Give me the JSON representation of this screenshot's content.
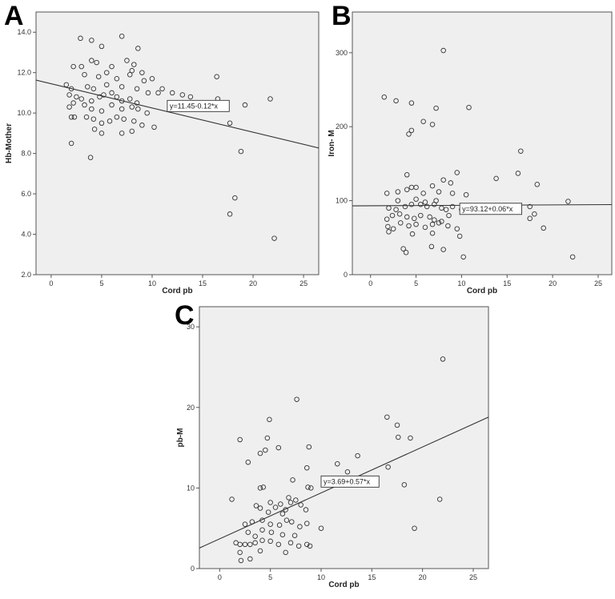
{
  "chart_data": [
    {
      "id": "A",
      "type": "scatter",
      "panel_label": "A",
      "xlabel": "Cord pb",
      "ylabel": "Hb-Mother",
      "xlim": [
        -1.5,
        26.5
      ],
      "ylim": [
        2.0,
        15.0
      ],
      "xticks": [
        0,
        5,
        10,
        15,
        20,
        25
      ],
      "yticks": [
        2.0,
        4.0,
        6.0,
        8.0,
        10.0,
        12.0,
        14.0
      ],
      "ytick_labels": [
        "2.0",
        "4.0",
        "6.0",
        "8.0",
        "10.0",
        "12.0",
        "14.0"
      ],
      "fit": {
        "intercept": 11.45,
        "slope": -0.12,
        "label": "y=11.45-0.12*x",
        "label_at": [
          11.5,
          10.35
        ]
      },
      "points": [
        [
          2.9,
          13.7
        ],
        [
          4.0,
          13.6
        ],
        [
          7.0,
          13.8
        ],
        [
          5.0,
          13.3
        ],
        [
          8.6,
          13.2
        ],
        [
          3.0,
          12.3
        ],
        [
          2.2,
          12.3
        ],
        [
          4.0,
          12.6
        ],
        [
          4.5,
          12.5
        ],
        [
          7.5,
          12.6
        ],
        [
          8.2,
          12.4
        ],
        [
          8.0,
          12.1
        ],
        [
          9.0,
          12.0
        ],
        [
          5.5,
          12.0
        ],
        [
          6.0,
          12.3
        ],
        [
          3.3,
          11.9
        ],
        [
          4.7,
          11.8
        ],
        [
          6.5,
          11.7
        ],
        [
          7.8,
          11.9
        ],
        [
          9.2,
          11.6
        ],
        [
          10.0,
          11.7
        ],
        [
          16.4,
          11.8
        ],
        [
          1.5,
          11.4
        ],
        [
          2.0,
          11.2
        ],
        [
          3.6,
          11.3
        ],
        [
          4.2,
          11.2
        ],
        [
          5.5,
          11.4
        ],
        [
          7.0,
          11.3
        ],
        [
          8.5,
          11.2
        ],
        [
          9.6,
          11.0
        ],
        [
          12.0,
          11.0
        ],
        [
          1.8,
          10.9
        ],
        [
          2.5,
          10.8
        ],
        [
          3.0,
          10.7
        ],
        [
          4.0,
          10.6
        ],
        [
          4.8,
          10.8
        ],
        [
          5.2,
          10.9
        ],
        [
          6.0,
          11.0
        ],
        [
          6.5,
          10.8
        ],
        [
          7.0,
          10.6
        ],
        [
          7.8,
          10.7
        ],
        [
          8.5,
          10.5
        ],
        [
          10.6,
          11.0
        ],
        [
          13.0,
          10.9
        ],
        [
          13.8,
          10.8
        ],
        [
          16.5,
          10.7
        ],
        [
          21.7,
          10.7
        ],
        [
          1.8,
          10.3
        ],
        [
          2.2,
          10.5
        ],
        [
          3.3,
          10.4
        ],
        [
          4.0,
          10.2
        ],
        [
          5.0,
          10.1
        ],
        [
          6.0,
          10.4
        ],
        [
          7.0,
          10.2
        ],
        [
          8.0,
          10.3
        ],
        [
          8.6,
          10.2
        ],
        [
          9.5,
          10.0
        ],
        [
          19.2,
          10.4
        ],
        [
          11.0,
          11.2
        ],
        [
          2.0,
          9.8
        ],
        [
          2.3,
          9.8
        ],
        [
          3.5,
          9.8
        ],
        [
          4.2,
          9.7
        ],
        [
          5.0,
          9.5
        ],
        [
          5.8,
          9.6
        ],
        [
          6.5,
          9.8
        ],
        [
          7.2,
          9.7
        ],
        [
          8.2,
          9.6
        ],
        [
          9.0,
          9.4
        ],
        [
          10.2,
          9.3
        ],
        [
          17.7,
          9.5
        ],
        [
          4.3,
          9.2
        ],
        [
          5.0,
          9.0
        ],
        [
          7.0,
          9.0
        ],
        [
          8.0,
          9.1
        ],
        [
          2.0,
          8.5
        ],
        [
          18.8,
          8.1
        ],
        [
          3.9,
          7.8
        ],
        [
          18.2,
          5.8
        ],
        [
          17.7,
          5.0
        ],
        [
          22.1,
          3.8
        ]
      ]
    },
    {
      "id": "B",
      "type": "scatter",
      "panel_label": "B",
      "xlabel": "Cord pb",
      "ylabel": "Iron- M",
      "xlim": [
        -2,
        26.5
      ],
      "ylim": [
        0,
        355
      ],
      "xticks": [
        0,
        5,
        10,
        15,
        20,
        25
      ],
      "yticks": [
        0,
        100,
        200,
        300
      ],
      "ytick_labels": [
        "0",
        "100",
        "200",
        "300"
      ],
      "fit": {
        "intercept": 93.12,
        "slope": 0.06,
        "label": "y=93.12+0.06*x",
        "label_at": [
          9.8,
          89
        ]
      },
      "points": [
        [
          8.0,
          303
        ],
        [
          1.5,
          240
        ],
        [
          2.8,
          235
        ],
        [
          4.5,
          232
        ],
        [
          7.2,
          225
        ],
        [
          10.8,
          226
        ],
        [
          5.8,
          207
        ],
        [
          6.8,
          203
        ],
        [
          4.5,
          195
        ],
        [
          4.2,
          190
        ],
        [
          16.5,
          167
        ],
        [
          4.0,
          135
        ],
        [
          9.5,
          138
        ],
        [
          16.2,
          137
        ],
        [
          13.8,
          130
        ],
        [
          5.0,
          118
        ],
        [
          4.0,
          115
        ],
        [
          4.5,
          118
        ],
        [
          6.8,
          120
        ],
        [
          8.0,
          128
        ],
        [
          8.8,
          124
        ],
        [
          10.5,
          108
        ],
        [
          18.3,
          122
        ],
        [
          1.8,
          110
        ],
        [
          3.0,
          112
        ],
        [
          5.8,
          110
        ],
        [
          7.5,
          112
        ],
        [
          9.0,
          110
        ],
        [
          2.0,
          90
        ],
        [
          2.8,
          88
        ],
        [
          3.8,
          92
        ],
        [
          4.5,
          95
        ],
        [
          5.5,
          95
        ],
        [
          6.2,
          92
        ],
        [
          7.0,
          95
        ],
        [
          7.8,
          90
        ],
        [
          8.3,
          88
        ],
        [
          9.0,
          92
        ],
        [
          10.0,
          88
        ],
        [
          17.5,
          92
        ],
        [
          21.7,
          99
        ],
        [
          3.0,
          100
        ],
        [
          5.0,
          102
        ],
        [
          6.0,
          98
        ],
        [
          7.2,
          100
        ],
        [
          1.8,
          75
        ],
        [
          2.4,
          80
        ],
        [
          3.2,
          82
        ],
        [
          4.0,
          78
        ],
        [
          4.8,
          76
        ],
        [
          5.5,
          80
        ],
        [
          6.5,
          78
        ],
        [
          7.0,
          74
        ],
        [
          7.8,
          72
        ],
        [
          8.6,
          80
        ],
        [
          17.5,
          76
        ],
        [
          18.0,
          82
        ],
        [
          1.9,
          65
        ],
        [
          2.5,
          62
        ],
        [
          3.3,
          70
        ],
        [
          4.2,
          66
        ],
        [
          5.0,
          68
        ],
        [
          6.0,
          64
        ],
        [
          6.8,
          68
        ],
        [
          7.5,
          70
        ],
        [
          8.5,
          66
        ],
        [
          9.5,
          62
        ],
        [
          19.0,
          63
        ],
        [
          2.0,
          58
        ],
        [
          4.6,
          55
        ],
        [
          6.8,
          56
        ],
        [
          9.8,
          52
        ],
        [
          3.6,
          35
        ],
        [
          3.9,
          30
        ],
        [
          6.7,
          38
        ],
        [
          8.0,
          34
        ],
        [
          10.2,
          24
        ],
        [
          22.2,
          24
        ]
      ]
    },
    {
      "id": "C",
      "type": "scatter",
      "panel_label": "C",
      "xlabel": "Cord pb",
      "ylabel": "pb-M",
      "xlim": [
        -2,
        26.5
      ],
      "ylim": [
        0,
        32.5
      ],
      "xticks": [
        0,
        5,
        10,
        15,
        20,
        25
      ],
      "yticks": [
        0,
        10,
        20,
        30
      ],
      "ytick_labels": [
        "0",
        "10",
        "20",
        "30"
      ],
      "fit": {
        "intercept": 3.69,
        "slope": 0.57,
        "label": "y=3.69+0.57*x",
        "label_at": [
          10.0,
          10.8
        ]
      },
      "points": [
        [
          22.0,
          26.0
        ],
        [
          7.6,
          21.0
        ],
        [
          4.9,
          18.5
        ],
        [
          16.5,
          18.8
        ],
        [
          17.5,
          17.8
        ],
        [
          2.0,
          16.0
        ],
        [
          4.7,
          16.2
        ],
        [
          17.6,
          16.3
        ],
        [
          18.8,
          16.2
        ],
        [
          5.8,
          15.0
        ],
        [
          8.8,
          15.1
        ],
        [
          4.5,
          14.7
        ],
        [
          13.6,
          14.0
        ],
        [
          4.0,
          14.3
        ],
        [
          2.8,
          13.2
        ],
        [
          11.6,
          13.0
        ],
        [
          16.6,
          12.6
        ],
        [
          8.6,
          12.5
        ],
        [
          12.6,
          12.0
        ],
        [
          18.2,
          10.4
        ],
        [
          7.2,
          11.0
        ],
        [
          4.0,
          10.0
        ],
        [
          4.3,
          10.1
        ],
        [
          8.7,
          10.1
        ],
        [
          9.0,
          10.0
        ],
        [
          21.7,
          8.6
        ],
        [
          1.2,
          8.6
        ],
        [
          3.6,
          7.8
        ],
        [
          5.0,
          8.2
        ],
        [
          5.5,
          7.6
        ],
        [
          6.0,
          8.0
        ],
        [
          6.5,
          7.3
        ],
        [
          7.0,
          8.2
        ],
        [
          7.5,
          8.5
        ],
        [
          8.0,
          7.9
        ],
        [
          8.5,
          7.3
        ],
        [
          4.0,
          7.5
        ],
        [
          4.8,
          7.0
        ],
        [
          6.2,
          6.8
        ],
        [
          6.8,
          8.8
        ],
        [
          2.5,
          5.5
        ],
        [
          3.2,
          5.8
        ],
        [
          4.2,
          6.0
        ],
        [
          5.0,
          5.5
        ],
        [
          5.9,
          5.4
        ],
        [
          6.6,
          6.0
        ],
        [
          7.1,
          5.8
        ],
        [
          7.9,
          5.2
        ],
        [
          8.6,
          5.6
        ],
        [
          2.8,
          4.5
        ],
        [
          3.5,
          4.0
        ],
        [
          4.2,
          4.8
        ],
        [
          5.1,
          4.5
        ],
        [
          6.2,
          4.2
        ],
        [
          7.4,
          4.1
        ],
        [
          1.6,
          3.2
        ],
        [
          2.0,
          3.0
        ],
        [
          2.5,
          3.0
        ],
        [
          3.0,
          3.0
        ],
        [
          3.5,
          3.2
        ],
        [
          4.2,
          3.5
        ],
        [
          5.0,
          3.4
        ],
        [
          5.8,
          3.0
        ],
        [
          7.0,
          3.2
        ],
        [
          7.8,
          2.8
        ],
        [
          8.6,
          3.0
        ],
        [
          8.9,
          2.8
        ],
        [
          4.0,
          2.2
        ],
        [
          6.5,
          2.0
        ],
        [
          10.0,
          5.0
        ],
        [
          19.2,
          5.0
        ],
        [
          2.0,
          2.0
        ],
        [
          2.1,
          1.0
        ],
        [
          3.0,
          1.2
        ]
      ]
    }
  ]
}
